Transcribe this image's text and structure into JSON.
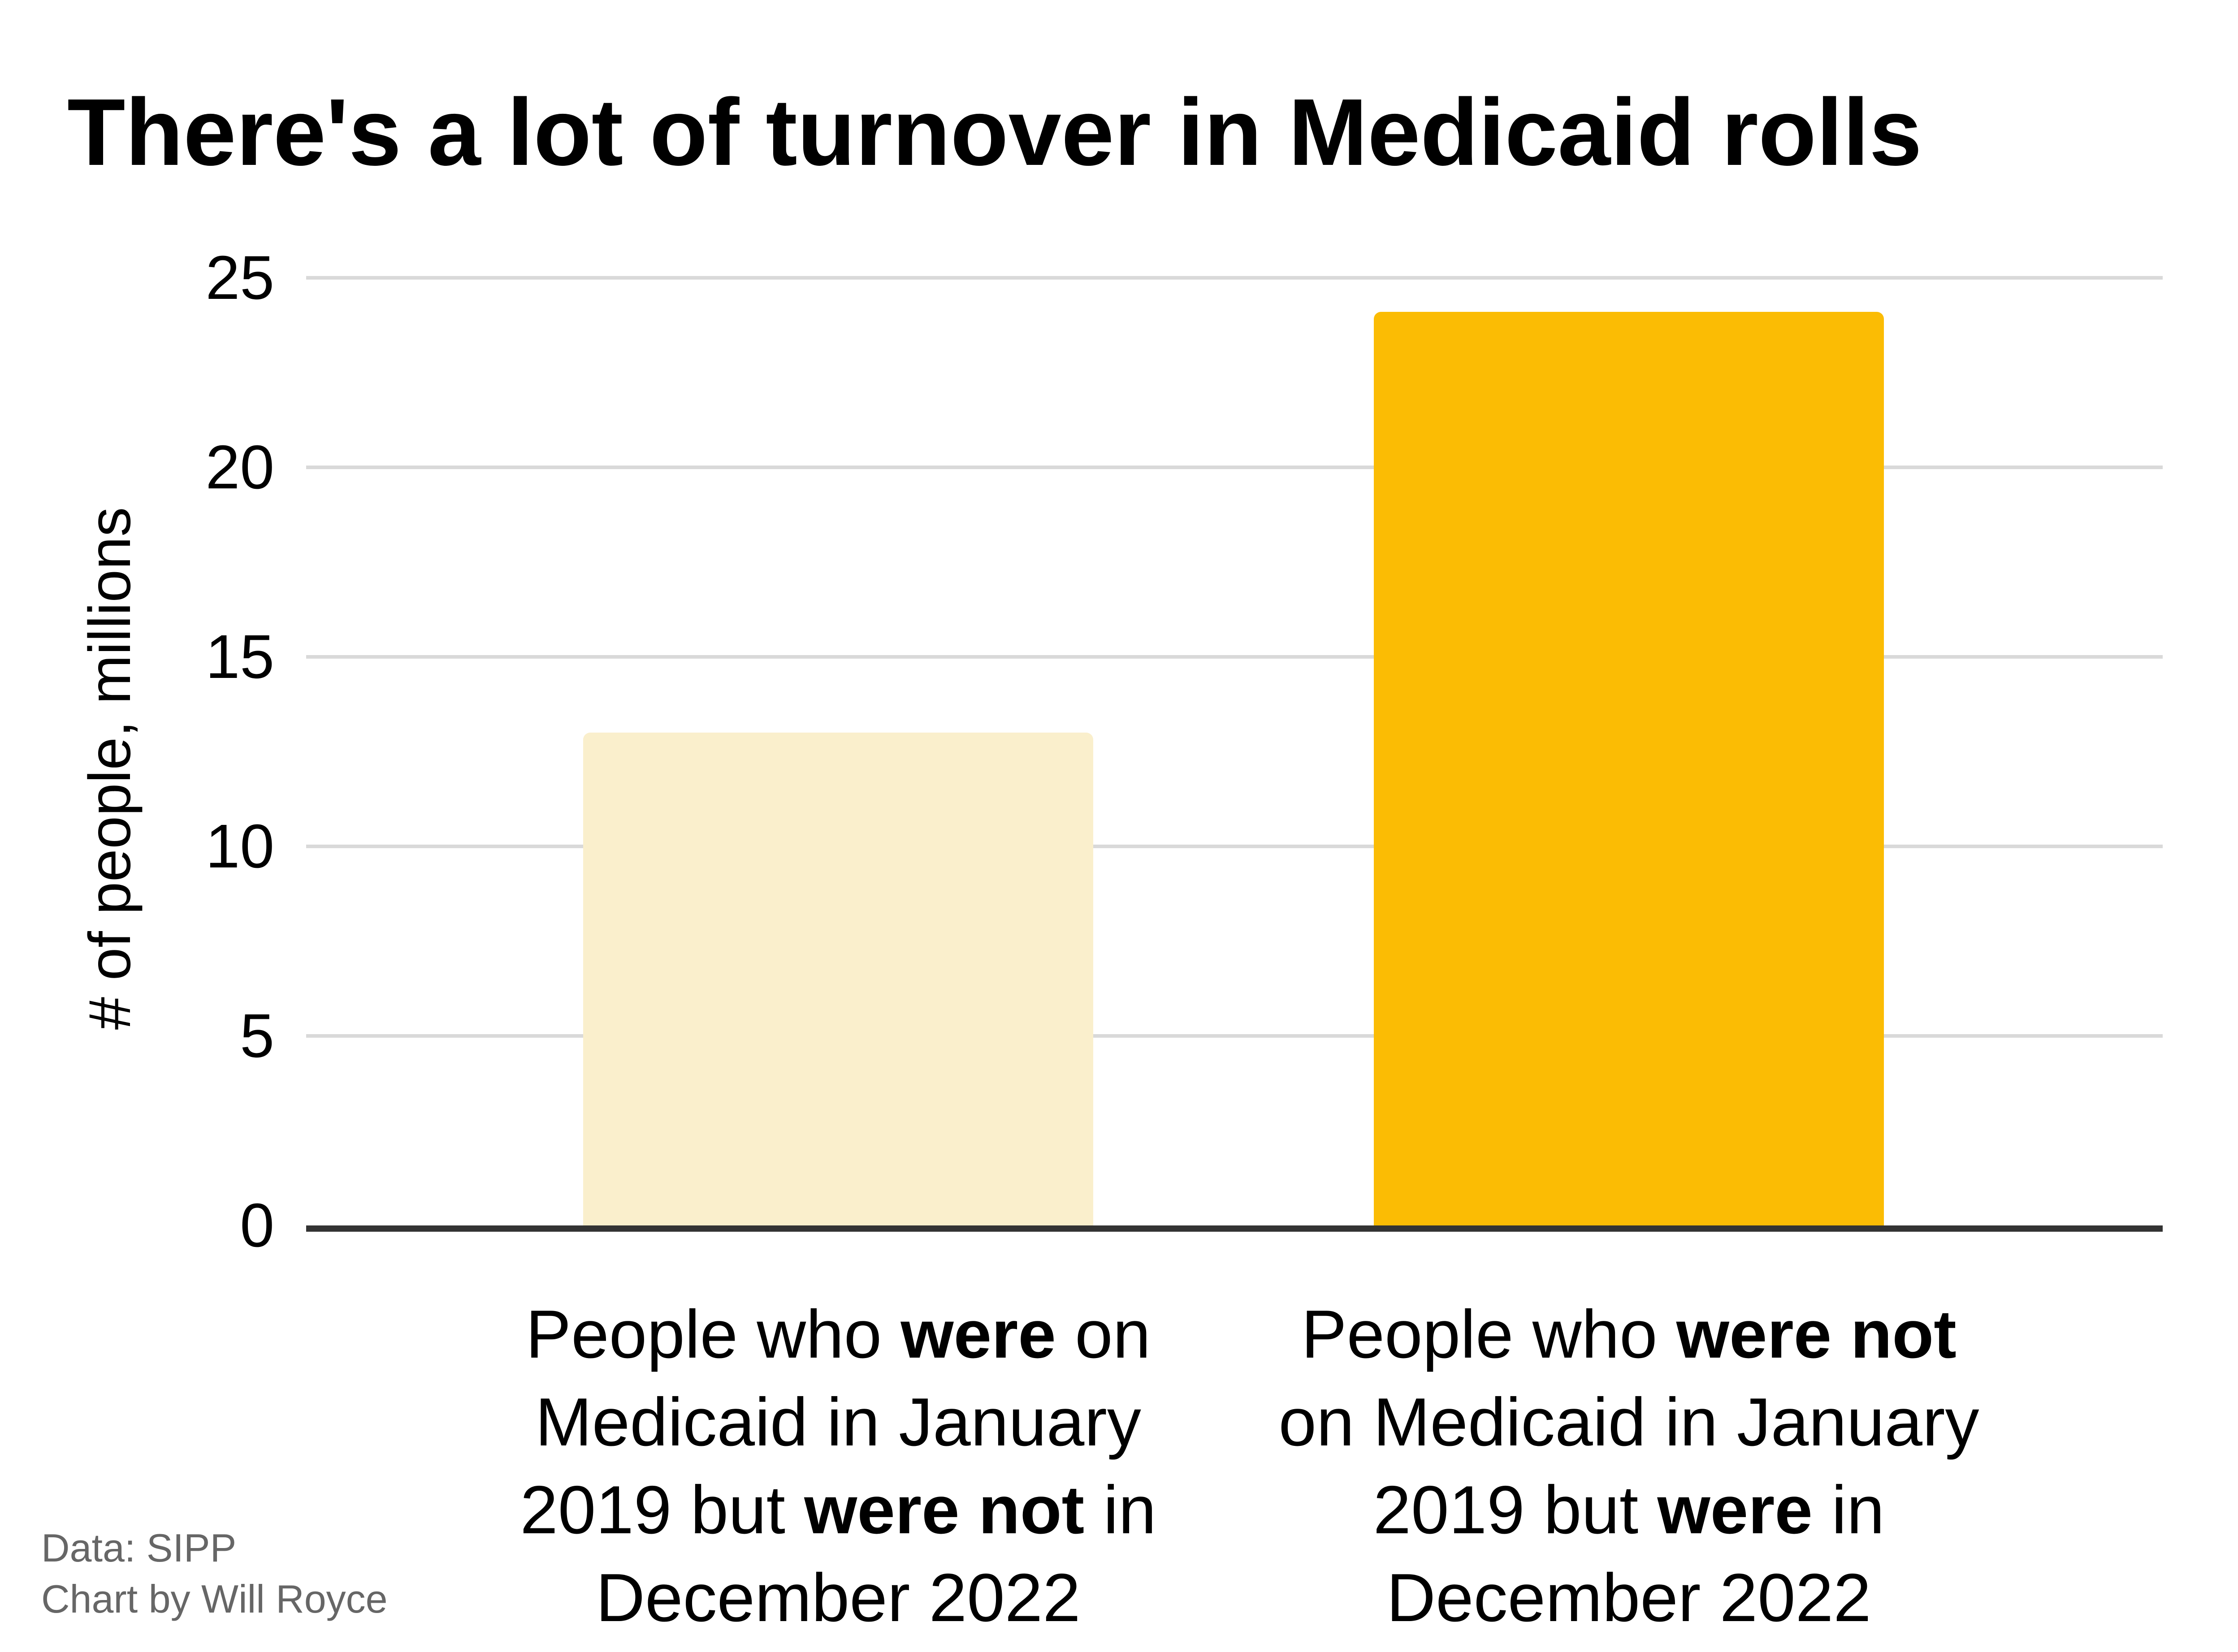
{
  "title": "There's a lot of turnover in Medicaid rolls",
  "footer": {
    "line1": "Data: SIPP",
    "line2": "Chart by Will Royce"
  },
  "chart_data": {
    "type": "bar",
    "title": "There's a lot of turnover in Medicaid rolls",
    "xlabel": "",
    "ylabel": "# of people, millions",
    "ylim": [
      0,
      25
    ],
    "yticks": [
      0,
      5,
      10,
      15,
      20,
      25
    ],
    "grid": true,
    "legend_position": "none",
    "categories": [
      "People who were on Medicaid in January 2019 but were not in December 2022",
      "People who were not on Medicaid in January 2019 but were in December 2022"
    ],
    "categories_rich": [
      [
        [
          {
            "t": "People who ",
            "b": false
          },
          {
            "t": "were",
            "b": true
          },
          {
            "t": " on",
            "b": false
          }
        ],
        [
          {
            "t": "Medicaid in January",
            "b": false
          }
        ],
        [
          {
            "t": "2019 but ",
            "b": false
          },
          {
            "t": "were not",
            "b": true
          },
          {
            "t": " in",
            "b": false
          }
        ],
        [
          {
            "t": "December 2022",
            "b": false
          }
        ]
      ],
      [
        [
          {
            "t": "People who ",
            "b": false
          },
          {
            "t": "were not",
            "b": true
          }
        ],
        [
          {
            "t": "on Medicaid in January",
            "b": false
          }
        ],
        [
          {
            "t": "2019 but ",
            "b": false
          },
          {
            "t": "were",
            "b": true
          },
          {
            "t": " in",
            "b": false
          }
        ],
        [
          {
            "t": "December 2022",
            "b": false
          }
        ]
      ]
    ],
    "values": [
      13,
      24.1
    ],
    "bar_colors": [
      "#FAEFCC",
      "#FBBC04"
    ],
    "gridline_color": "#d9d9d9",
    "axis_color": "#333333",
    "text_color": "#000000",
    "footer_color": "#666666"
  }
}
